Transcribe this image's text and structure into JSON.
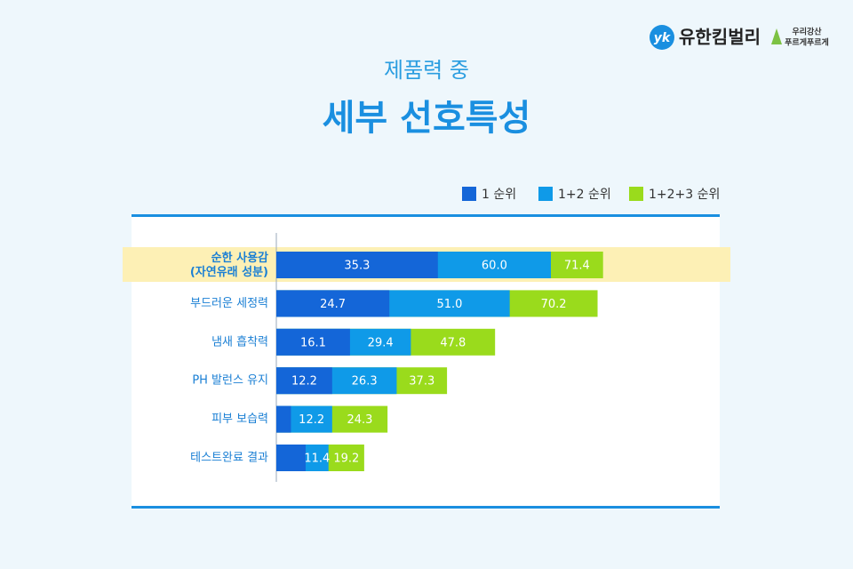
{
  "chart_data": {
    "type": "overlap-bar",
    "brand": {
      "name": "유한킴벌리",
      "tagline": [
        "우리강산",
        "푸르게푸르게"
      ]
    },
    "subtitle": "제품력 중",
    "title": "세부 선호특성",
    "categories": [
      "순한 사용감\n(자연유래 성분)",
      "부드러운 세정력",
      "냄새 흡착력",
      "PH 발런스 유지",
      "피부 보습력",
      "테스트완료 결과"
    ],
    "series": [
      {
        "name": "1 순위",
        "color": "#1466d8",
        "values": [
          35.3,
          24.7,
          16.1,
          12.2,
          3.2,
          6.4
        ],
        "value_labels": [
          "35.3",
          "24.7",
          "16.1",
          "12.2",
          null,
          null
        ]
      },
      {
        "name": "1+2 순위",
        "color": "#0f9ae8",
        "values": [
          60.0,
          51.0,
          29.4,
          26.3,
          12.2,
          11.4
        ],
        "value_labels": [
          "60.0",
          "51.0",
          "29.4",
          "26.3",
          "12.2",
          "11.4"
        ]
      },
      {
        "name": "1+2+3 순위",
        "color": "#9adb1c",
        "values": [
          71.4,
          70.2,
          47.8,
          37.3,
          24.3,
          19.2
        ],
        "value_labels": [
          "71.4",
          "70.2",
          "47.8",
          "37.3",
          "24.3",
          "19.2"
        ]
      }
    ]
  }
}
